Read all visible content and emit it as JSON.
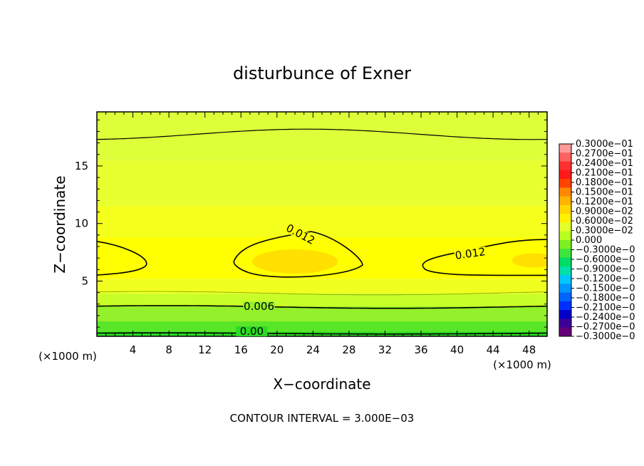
{
  "chart_data": {
    "type": "contour",
    "title": "disturbunce of Exner",
    "xlabel": "X−coordinate",
    "ylabel": "Z−coordinate",
    "x_unit": "(×1000 m)",
    "y_unit": "(×1000 m)",
    "xlim": [
      0,
      50
    ],
    "ylim": [
      0.2,
      19.7
    ],
    "xticks": [
      "4",
      "8",
      "12",
      "16",
      "20",
      "24",
      "28",
      "32",
      "36",
      "40",
      "44",
      "48"
    ],
    "yticks": [
      "5",
      "10",
      "15"
    ],
    "contour_interval_text": "CONTOUR INTERVAL = 3.000E−03",
    "contour_labels": [
      {
        "text": "0.012",
        "x": 22.5,
        "y": 8.9
      },
      {
        "text": "0.012",
        "x": 41.5,
        "y": 7.2
      },
      {
        "text": "0.006",
        "x": 18.0,
        "y": 2.6
      },
      {
        "text": "0.00",
        "x": 17.2,
        "y": 0.45
      }
    ],
    "colorbar_labels": [
      "0.3000e−01",
      "0.2700e−01",
      "0.2400e−01",
      "0.2100e−01",
      "0.1800e−01",
      "0.1500e−01",
      "0.1200e−01",
      "0.9000e−02",
      "0.6000e−02",
      "0.3000e−02",
      "0.000",
      "−0.3000e−0",
      "−0.6000e−0",
      "−0.9000e−0",
      "−0.1200e−0",
      "−0.1500e−0",
      "−0.1800e−0",
      "−0.2100e−0",
      "−0.2400e−0",
      "−0.2700e−0",
      "−0.3000e−0"
    ],
    "colorbar_colors": [
      "#ff9a9a",
      "#ff6060",
      "#ff3030",
      "#ff1a1a",
      "#ff4400",
      "#ff8800",
      "#ffb400",
      "#ffd800",
      "#fff200",
      "#e4ff2a",
      "#b8ff20",
      "#7cf020",
      "#3ce63c",
      "#00dd66",
      "#00e0aa",
      "#00c8ff",
      "#0096ff",
      "#0064ff",
      "#0030ff",
      "#0000c8",
      "#3c0096",
      "#640078"
    ],
    "regions": {
      "high_band_center_y": 6.8,
      "high_core_centers_x": [
        22,
        48
      ],
      "low_value_at_surface": 0.0,
      "value_at_top": 0.0075
    }
  }
}
